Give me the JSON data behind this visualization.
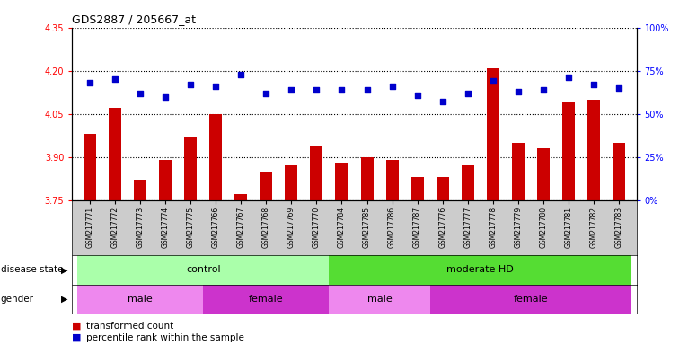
{
  "title": "GDS2887 / 205667_at",
  "samples": [
    "GSM217771",
    "GSM217772",
    "GSM217773",
    "GSM217774",
    "GSM217775",
    "GSM217766",
    "GSM217767",
    "GSM217768",
    "GSM217769",
    "GSM217770",
    "GSM217784",
    "GSM217785",
    "GSM217786",
    "GSM217787",
    "GSM217776",
    "GSM217777",
    "GSM217778",
    "GSM217779",
    "GSM217780",
    "GSM217781",
    "GSM217782",
    "GSM217783"
  ],
  "bar_values": [
    3.98,
    4.07,
    3.82,
    3.89,
    3.97,
    4.05,
    3.77,
    3.85,
    3.87,
    3.94,
    3.88,
    3.9,
    3.89,
    3.83,
    3.83,
    3.87,
    4.21,
    3.95,
    3.93,
    4.09,
    4.1,
    3.95
  ],
  "percentile_values": [
    68,
    70,
    62,
    60,
    67,
    66,
    73,
    62,
    64,
    64,
    64,
    64,
    66,
    61,
    57,
    62,
    69,
    63,
    64,
    71,
    67,
    65
  ],
  "ylim_left": [
    3.75,
    4.35
  ],
  "ylim_right": [
    0,
    100
  ],
  "yticks_left": [
    3.75,
    3.9,
    4.05,
    4.2,
    4.35
  ],
  "yticks_right": [
    0,
    25,
    50,
    75,
    100
  ],
  "bar_color": "#cc0000",
  "scatter_color": "#0000cc",
  "disease_state_groups": [
    {
      "label": "control",
      "start": 0,
      "end": 10,
      "color": "#aaffaa"
    },
    {
      "label": "moderate HD",
      "start": 10,
      "end": 22,
      "color": "#55dd33"
    }
  ],
  "gender_groups": [
    {
      "label": "male",
      "start": 0,
      "end": 5,
      "color": "#ee88ee"
    },
    {
      "label": "female",
      "start": 5,
      "end": 10,
      "color": "#cc33cc"
    },
    {
      "label": "male",
      "start": 10,
      "end": 14,
      "color": "#ee88ee"
    },
    {
      "label": "female",
      "start": 14,
      "end": 22,
      "color": "#cc33cc"
    }
  ],
  "xlabel_label_disease": "disease state",
  "xlabel_label_gender": "gender",
  "legend_bar": "transformed count",
  "legend_scatter": "percentile rank within the sample",
  "xtick_bg_color": "#cccccc"
}
